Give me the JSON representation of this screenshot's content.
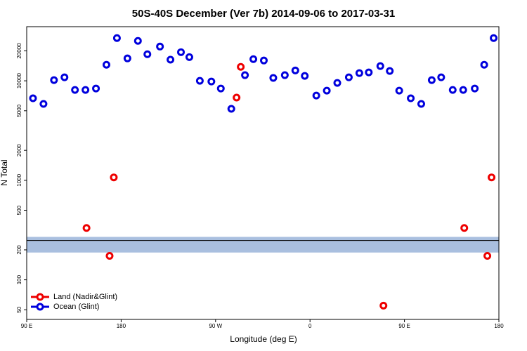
{
  "chart_data": {
    "type": "scatter",
    "title": "50S-40S December (Ver 7b)   2014-09-06 to 2017-03-31",
    "x_label": "Longitude (deg E)",
    "y_label": "N Total",
    "xlim": [
      90,
      540
    ],
    "xticks": [
      {
        "value": 90,
        "label": "90 E"
      },
      180,
      {
        "value": 270,
        "label": "90 W"
      },
      {
        "value": 360,
        "label": "0"
      },
      {
        "value": 450,
        "label": "90 E"
      },
      {
        "value": 540,
        "label": "180"
      }
    ],
    "ylim": [
      40,
      35000
    ],
    "log_y": true,
    "yticks": [
      50,
      100,
      200,
      500,
      1000,
      2000,
      5000,
      10000,
      20000
    ],
    "band": [
      188,
      270
    ],
    "band_color": "#a9bfdf",
    "reference_line": 248,
    "legend": "bottomleft",
    "series": [
      {
        "name": "Land (Nadir&Glint)",
        "color": "#ee0000",
        "x": [
          147,
          169,
          173,
          290,
          294,
          430,
          507,
          529,
          533
        ],
        "values": [
          332,
          174,
          1070,
          6780,
          13800,
          55,
          332,
          174,
          1070
        ]
      },
      {
        "name": "Ocean (Glint)",
        "color": "#0000dd",
        "x": [
          96,
          106,
          116,
          126,
          136,
          146,
          156,
          166,
          176,
          186,
          196,
          205,
          217,
          227,
          237,
          245,
          255,
          266,
          275,
          285,
          298,
          306,
          316,
          325,
          336,
          346,
          355,
          366,
          376,
          386,
          397,
          407,
          416,
          427,
          436,
          445,
          456,
          466,
          476,
          485,
          496,
          506,
          517,
          526,
          535
        ],
        "values": [
          6670,
          5860,
          10160,
          10840,
          8100,
          8100,
          8370,
          14500,
          26900,
          16800,
          25200,
          18500,
          22100,
          16300,
          19400,
          17300,
          10000,
          9840,
          8370,
          5230,
          11400,
          16500,
          16000,
          10700,
          11400,
          12700,
          11200,
          7110,
          7970,
          9530,
          10840,
          11950,
          12150,
          14060,
          12550,
          7970,
          6670,
          5860,
          10160,
          10840,
          8100,
          8100,
          8370,
          14500,
          26900
        ]
      }
    ]
  }
}
